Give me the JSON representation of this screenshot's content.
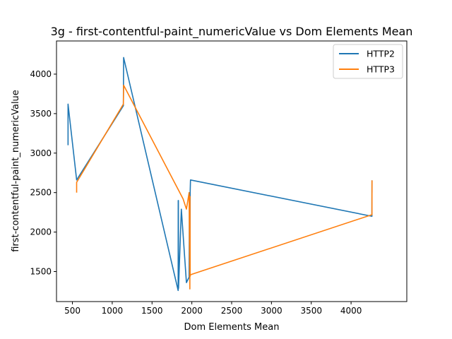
{
  "chart_data": {
    "type": "line",
    "title": "3g - first-contentful-paint_numericValue vs Dom Elements Mean",
    "xlabel": "Dom Elements Mean",
    "ylabel": "first-contentful-paint_numericValue",
    "xlim": [
      300,
      4700
    ],
    "ylim": [
      1120,
      4420
    ],
    "xticks": [
      500,
      1000,
      1500,
      2000,
      2500,
      3000,
      3500,
      4000
    ],
    "yticks": [
      1500,
      2000,
      2500,
      3000,
      3500,
      4000
    ],
    "grid": false,
    "legend_position": "top-right",
    "series": [
      {
        "name": "HTTP2",
        "color": "#1f77b4",
        "x": [
          445,
          445,
          553,
          1140,
          1143,
          1828,
          1829,
          1831,
          1831,
          1833,
          1868,
          1932,
          1966,
          1970,
          1975,
          1979,
          1983,
          4262,
          4263,
          4263
        ],
        "y": [
          3100,
          3620,
          2660,
          3600,
          4210,
          1260,
          2400,
          1280,
          2400,
          1290,
          2290,
          1360,
          1430,
          2410,
          1460,
          2510,
          2660,
          2200,
          2650,
          2500
        ]
      },
      {
        "name": "HTTP3",
        "color": "#ff7f0e",
        "x": [
          553,
          553,
          1140,
          1143,
          1890,
          1932,
          1966,
          1975,
          1977,
          1979,
          1983,
          4262,
          4263,
          4263
        ],
        "y": [
          2500,
          2630,
          3620,
          3860,
          2420,
          2290,
          2500,
          1280,
          2450,
          1440,
          1460,
          2220,
          2650,
          2640
        ]
      }
    ]
  }
}
